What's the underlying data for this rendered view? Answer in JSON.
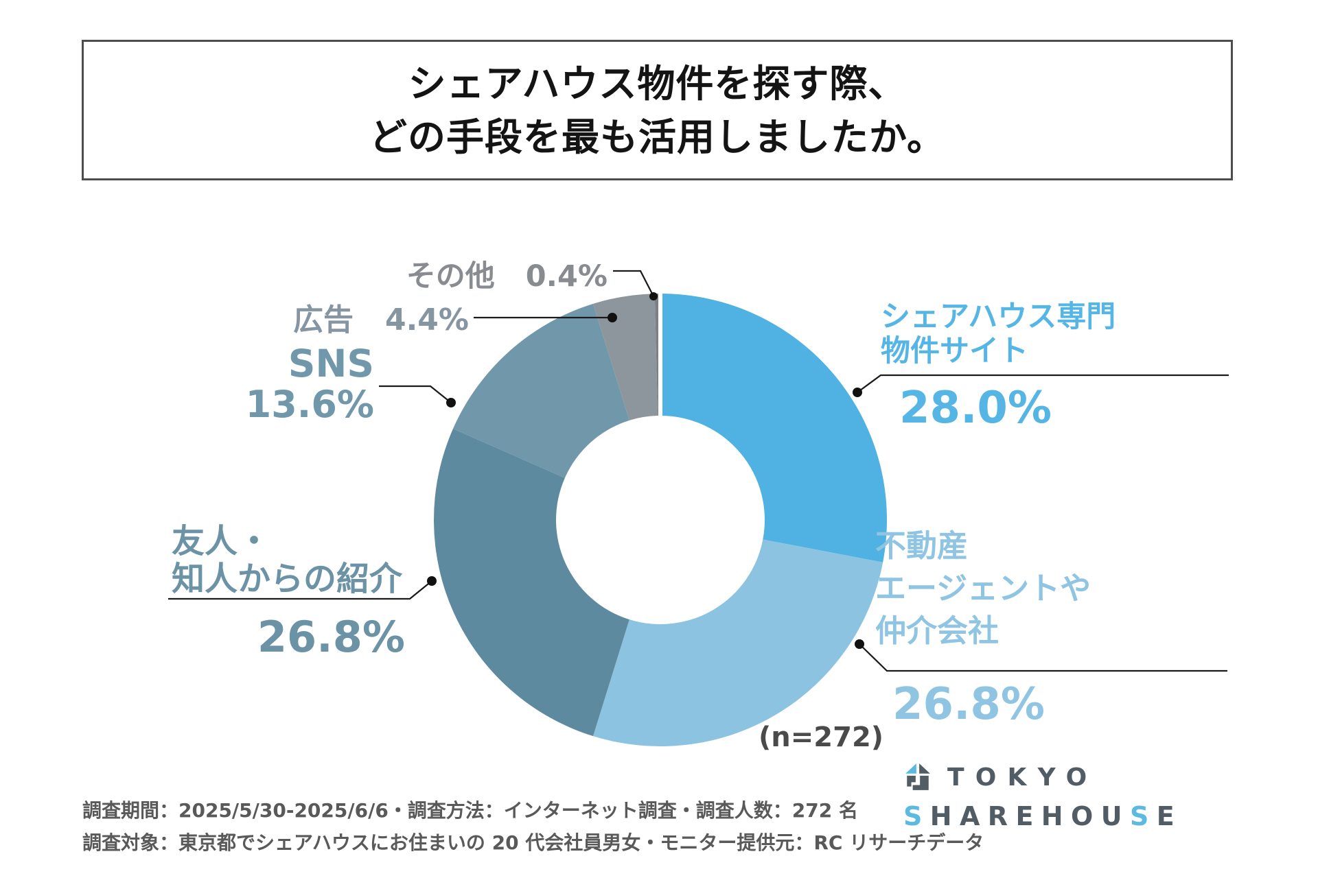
{
  "title": {
    "lines": [
      "シェアハウス物件を探す際、",
      "どの手段を最も活用しましたか。"
    ]
  },
  "chart_data": {
    "type": "pie",
    "variant": "donut",
    "title": "シェアハウス物件を探す際、どの手段を最も活用しましたか。",
    "sample_label": "(n=272)",
    "sample_n": 272,
    "start_angle_deg": 0,
    "direction": "clockwise",
    "donut_hole_ratio": 0.46,
    "legend_position": "around-chart-callouts",
    "slices": [
      {
        "label": "シェアハウス専門物件サイト",
        "label_lines": [
          "シェアハウス専門",
          "物件サイト"
        ],
        "pct": 28.0,
        "pct_display": "28.0%",
        "color": "#4fb2e2",
        "label_color": "#55b6e6"
      },
      {
        "label": "不動産エージェントや仲介会社",
        "label_lines": [
          "不動産",
          "エージェントや",
          "仲介会社"
        ],
        "pct": 26.8,
        "pct_display": "26.8%",
        "color": "#8cc3e1",
        "label_color": "#8fc5e3"
      },
      {
        "label": "友人・知人からの紹介",
        "label_lines": [
          "友人・",
          "知人からの紹介"
        ],
        "pct": 26.8,
        "pct_display": "26.8%",
        "color": "#5e8aa0",
        "label_color": "#6c92a6"
      },
      {
        "label": "SNS",
        "label_lines": [
          "SNS"
        ],
        "pct": 13.6,
        "pct_display": "13.6%",
        "color": "#7097aa",
        "label_color": "#7097aa"
      },
      {
        "label": "広告",
        "label_lines": [
          "広告"
        ],
        "pct": 4.4,
        "pct_display": "4.4%",
        "color": "#8d969d",
        "label_color": "#8595a1"
      },
      {
        "label": "その他",
        "label_lines": [
          "その他"
        ],
        "pct": 0.4,
        "pct_display": "0.4%",
        "color": "#7c7f83",
        "label_color": "#888c91"
      }
    ]
  },
  "footer": {
    "line1": "調査期間：2025/5/30-2025/6/6・調査方法：インターネット調査・調査人数：272 名",
    "line2": "調査対象：東京都でシェアハウスにお住まいの 20 代会社員男女・モニター提供元：RC リサーチデータ"
  },
  "logo": {
    "word1": "TOKYO",
    "word2_parts": [
      "S",
      "HAREHOU",
      "S",
      "E"
    ],
    "accent_color": "#5bb9e2",
    "base_color": "#525c64"
  }
}
